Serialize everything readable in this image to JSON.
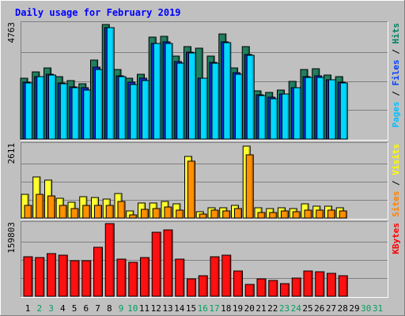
{
  "chart_data": {
    "type": "bar",
    "title": "Daily usage for February 2019",
    "days": [
      "1",
      "2",
      "3",
      "4",
      "5",
      "6",
      "7",
      "8",
      "9",
      "10",
      "11",
      "12",
      "13",
      "14",
      "15",
      "16",
      "17",
      "18",
      "19",
      "20",
      "21",
      "22",
      "23",
      "24",
      "25",
      "26",
      "27",
      "28",
      "29",
      "30",
      "31"
    ],
    "weekend_days": [
      "2",
      "3",
      "9",
      "10",
      "16",
      "17",
      "23",
      "24",
      "30",
      "31"
    ],
    "invalid_days": [
      "29",
      "30",
      "31"
    ],
    "panels": [
      {
        "id": "pages-files-hits",
        "max_label": "4763",
        "max": 4763,
        "legend": [
          {
            "label": "Pages",
            "color": "#00c0ff"
          },
          {
            "label": "Files",
            "color": "#0040ff"
          },
          {
            "label": "Hits",
            "color": "#008060"
          }
        ],
        "series": [
          {
            "name": "Hits",
            "color": "#208060",
            "values": [
              2480,
              2770,
              2900,
              2550,
              2400,
              2260,
              3230,
              4700,
              2840,
              2500,
              2650,
              4180,
              4200,
              3400,
              3780,
              3740,
              3400,
              4300,
              2920,
              3780,
              1990,
              1900,
              2000,
              2360,
              2840,
              2870,
              2610,
              2570,
              0,
              0,
              0
            ]
          },
          {
            "name": "Files",
            "color": "#1030d0",
            "values": [
              2330,
              2560,
              2660,
              2290,
              2150,
              2110,
              2940,
              4580,
              2580,
              2320,
              2480,
              3920,
              4000,
              3160,
              3570,
              2510,
              3140,
              4000,
              2710,
              3480,
              1820,
              1720,
              1860,
              2100,
              2560,
              2580,
              2420,
              2340,
              0,
              0,
              0
            ]
          },
          {
            "name": "Pages",
            "color": "#00d8ff",
            "values": [
              2300,
              2560,
              2640,
              2280,
              2110,
              2000,
              2850,
              4560,
              2550,
              2240,
              2390,
              3910,
              3930,
              3100,
              3520,
              2500,
              3110,
              3950,
              2660,
              3450,
              1780,
              1650,
              1840,
              2090,
              2530,
              2530,
              2430,
              2300,
              0,
              0,
              0
            ]
          }
        ]
      },
      {
        "id": "sites-visits",
        "max_label": "2611",
        "max": 2611,
        "legend": [
          {
            "label": "Sites",
            "color": "#ff8000"
          },
          {
            "label": "Visits",
            "color": "#ffff00"
          }
        ],
        "series": [
          {
            "name": "Visits",
            "color": "#ffff30",
            "values": [
              840,
              1470,
              1360,
              720,
              580,
              760,
              730,
              690,
              880,
              250,
              530,
              530,
              590,
              500,
              2200,
              220,
              380,
              380,
              440,
              2570,
              380,
              350,
              370,
              350,
              510,
              420,
              430,
              360,
              0,
              0,
              0
            ]
          },
          {
            "name": "Sites",
            "color": "#ff9000",
            "values": [
              460,
              860,
              800,
              450,
              350,
              440,
              440,
              450,
              600,
              120,
              300,
              330,
              390,
              280,
              2040,
              150,
              270,
              260,
              350,
              2280,
              200,
              200,
              250,
              220,
              290,
              270,
              290,
              260,
              0,
              0,
              0
            ]
          }
        ]
      },
      {
        "id": "kbytes",
        "max_label": "159803",
        "max": 159803,
        "legend": [
          {
            "label": "KBytes",
            "color": "#ff0000"
          }
        ],
        "series": [
          {
            "name": "KBytes",
            "color": "#ff1010",
            "values": [
              87000,
              85000,
              93000,
              90000,
              79000,
              79000,
              108000,
              159803,
              81000,
              74000,
              85000,
              140000,
              146000,
              81000,
              38000,
              46000,
              86000,
              91000,
              55000,
              26000,
              38000,
              34000,
              28000,
              40000,
              56000,
              54000,
              50000,
              45000,
              0,
              0,
              0
            ]
          }
        ]
      }
    ]
  }
}
